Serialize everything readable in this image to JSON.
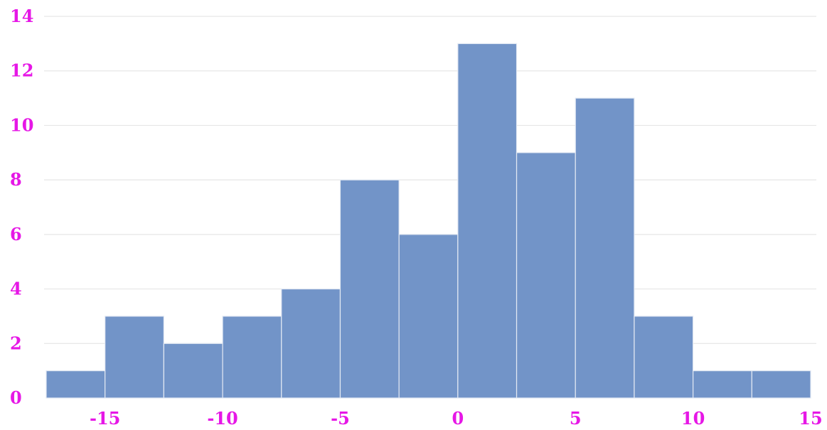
{
  "chart_data": {
    "type": "bar",
    "subtype": "histogram",
    "bins": [
      {
        "x0": -17.5,
        "x1": -15,
        "value": 1
      },
      {
        "x0": -15,
        "x1": -12.5,
        "value": 3
      },
      {
        "x0": -12.5,
        "x1": -10,
        "value": 2
      },
      {
        "x0": -10,
        "x1": -7.5,
        "value": 3
      },
      {
        "x0": -7.5,
        "x1": -5,
        "value": 4
      },
      {
        "x0": -5,
        "x1": -2.5,
        "value": 8
      },
      {
        "x0": -2.5,
        "x1": 0,
        "value": 6
      },
      {
        "x0": 0,
        "x1": 2.5,
        "value": 13
      },
      {
        "x0": 2.5,
        "x1": 5,
        "value": 9
      },
      {
        "x0": 5,
        "x1": 7.5,
        "value": 11
      },
      {
        "x0": 7.5,
        "x1": 10,
        "value": 3
      },
      {
        "x0": 10,
        "x1": 12.5,
        "value": 1
      },
      {
        "x0": 12.5,
        "x1": 15,
        "value": 1
      }
    ],
    "title": "",
    "xlabel": "",
    "ylabel": "",
    "xlim": [
      -17.5,
      15
    ],
    "ylim": [
      0,
      14
    ],
    "x_ticks": [
      {
        "value": -15,
        "label": "-15"
      },
      {
        "value": -10,
        "label": "-10"
      },
      {
        "value": -5,
        "label": "-5"
      },
      {
        "value": 0,
        "label": "0"
      },
      {
        "value": 5,
        "label": "5"
      },
      {
        "value": 10,
        "label": "10"
      },
      {
        "value": 15,
        "label": "15"
      }
    ],
    "y_ticks": [
      {
        "value": 0,
        "label": "0"
      },
      {
        "value": 2,
        "label": "2"
      },
      {
        "value": 4,
        "label": "4"
      },
      {
        "value": 6,
        "label": "6"
      },
      {
        "value": 8,
        "label": "8"
      },
      {
        "value": 10,
        "label": "10"
      },
      {
        "value": 12,
        "label": "12"
      },
      {
        "value": 14,
        "label": "14"
      }
    ],
    "grid": {
      "horizontal": true,
      "vertical": false
    },
    "colors": {
      "bar_fill": "#7294c8",
      "bar_stroke": "#e3e9f3",
      "tick_label": "#e617e6",
      "grid_line": "#e6e6e6"
    }
  }
}
